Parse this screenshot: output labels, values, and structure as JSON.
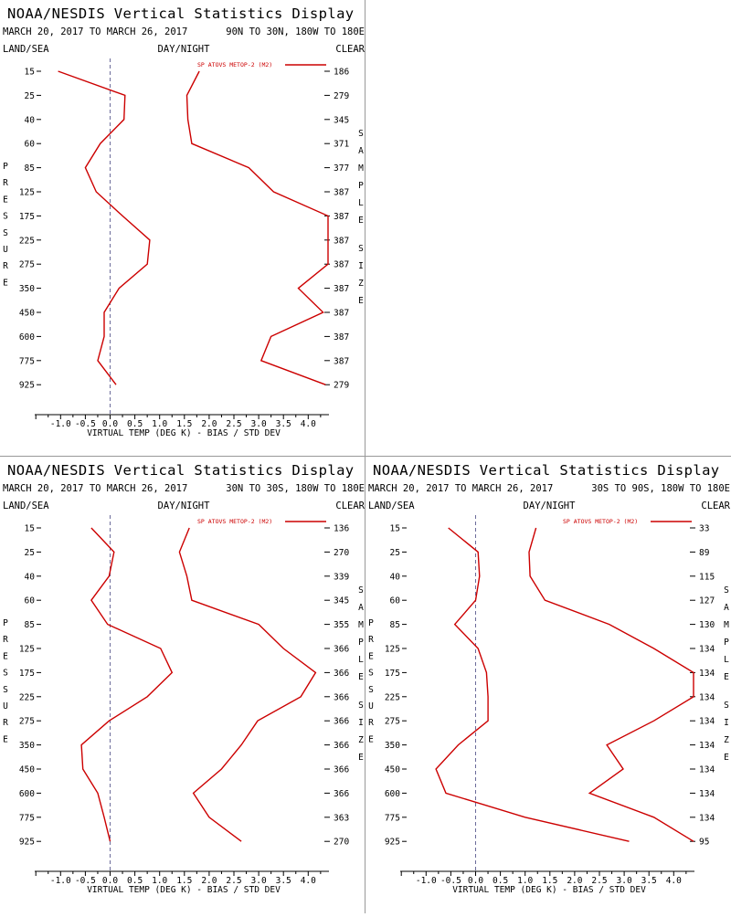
{
  "colors": {
    "series": "#cc0000",
    "zero_line": "#6b6b9a",
    "text": "#000000",
    "divider": "#999999"
  },
  "chart_data": [
    {
      "type": "line",
      "title": "NOAA/NESDIS Vertical Statistics Display",
      "date_range": "MARCH 20, 2017 TO MARCH 26, 2017",
      "region": "90N TO 30N, 180W TO 180E",
      "corner_labels": [
        "LAND/SEA",
        "DAY/NIGHT",
        "CLEAR"
      ],
      "ylabel": "PRESSURE",
      "y2label": "SAMPLE SIZE",
      "xlabel": "VIRTUAL TEMP (DEG K) - BIAS / STD DEV",
      "xlim": [
        -1.5,
        4.4
      ],
      "xticks": [
        "-1.0",
        "-0.5",
        "0.0",
        "0.5",
        "1.0",
        "1.5",
        "2.0",
        "2.5",
        "3.0",
        "3.5",
        "4.0"
      ],
      "pressure_levels": [
        "15",
        "25",
        "40",
        "60",
        "85",
        "125",
        "175",
        "225",
        "275",
        "350",
        "450",
        "600",
        "775",
        "925"
      ],
      "sample_size": [
        "186",
        "279",
        "345",
        "371",
        "377",
        "387",
        "387",
        "387",
        "387",
        "387",
        "387",
        "387",
        "387",
        "279"
      ],
      "legend": "SP ATOVS METOP-2 (M2)",
      "legend_position": "top-right",
      "series": [
        {
          "role": "bias",
          "values": [
            -1.05,
            0.3,
            0.28,
            -0.2,
            -0.5,
            -0.28,
            0.25,
            0.8,
            0.75,
            0.18,
            -0.12,
            -0.12,
            -0.25,
            0.12
          ]
        },
        {
          "role": "std_dev",
          "values": [
            1.8,
            1.55,
            1.57,
            1.65,
            2.8,
            3.3,
            4.4,
            4.4,
            4.4,
            3.8,
            4.3,
            3.25,
            3.05,
            4.35
          ]
        }
      ]
    },
    {
      "type": "line",
      "title": "NOAA/NESDIS Vertical Statistics Display",
      "date_range": "MARCH 20, 2017 TO MARCH 26, 2017",
      "region": "30N TO 30S, 180W TO 180E",
      "corner_labels": [
        "LAND/SEA",
        "DAY/NIGHT",
        "CLEAR"
      ],
      "ylabel": "PRESSURE",
      "y2label": "SAMPLE SIZE",
      "xlabel": "VIRTUAL TEMP (DEG K) - BIAS / STD DEV",
      "xlim": [
        -1.5,
        4.4
      ],
      "xticks": [
        "-1.0",
        "-0.5",
        "0.0",
        "0.5",
        "1.0",
        "1.5",
        "2.0",
        "2.5",
        "3.0",
        "3.5",
        "4.0"
      ],
      "pressure_levels": [
        "15",
        "25",
        "40",
        "60",
        "85",
        "125",
        "175",
        "225",
        "275",
        "350",
        "450",
        "600",
        "775",
        "925"
      ],
      "sample_size": [
        "136",
        "270",
        "339",
        "345",
        "355",
        "366",
        "366",
        "366",
        "366",
        "366",
        "366",
        "366",
        "363",
        "270"
      ],
      "legend": "SP ATOVS METOP-2 (M2)",
      "legend_position": "top-right",
      "series": [
        {
          "role": "bias",
          "values": [
            -0.38,
            0.08,
            -0.02,
            -0.38,
            -0.05,
            1.02,
            1.25,
            0.75,
            -0.02,
            -0.58,
            -0.55,
            -0.25,
            -0.12,
            0.0
          ]
        },
        {
          "role": "std_dev",
          "values": [
            1.6,
            1.4,
            1.55,
            1.65,
            3.0,
            3.5,
            4.15,
            3.85,
            2.98,
            2.65,
            2.25,
            1.68,
            2.0,
            2.65
          ]
        }
      ]
    },
    {
      "type": "line",
      "title": "NOAA/NESDIS Vertical Statistics Display",
      "date_range": "MARCH 20, 2017 TO MARCH 26, 2017",
      "region": "30S TO 90S, 180W TO 180E",
      "corner_labels": [
        "LAND/SEA",
        "DAY/NIGHT",
        "CLEAR"
      ],
      "ylabel": "PRESSURE",
      "y2label": "SAMPLE SIZE",
      "xlabel": "VIRTUAL TEMP (DEG K) - BIAS / STD DEV",
      "xlim": [
        -1.5,
        4.4
      ],
      "xticks": [
        "-1.0",
        "-0.5",
        "0.0",
        "0.5",
        "1.0",
        "1.5",
        "2.0",
        "2.5",
        "3.0",
        "3.5",
        "4.0"
      ],
      "pressure_levels": [
        "15",
        "25",
        "40",
        "60",
        "85",
        "125",
        "175",
        "225",
        "275",
        "350",
        "450",
        "600",
        "775",
        "925"
      ],
      "sample_size": [
        "33",
        "89",
        "115",
        "127",
        "130",
        "134",
        "134",
        "134",
        "134",
        "134",
        "134",
        "134",
        "134",
        "95"
      ],
      "legend": "SP ATOVS METOP-2 (M2)",
      "legend_position": "top-right",
      "series": [
        {
          "role": "bias",
          "values": [
            -0.55,
            0.05,
            0.08,
            0.0,
            -0.42,
            0.05,
            0.22,
            0.25,
            0.25,
            -0.35,
            -0.8,
            -0.6,
            1.0,
            3.1
          ]
        },
        {
          "role": "std_dev",
          "values": [
            1.22,
            1.08,
            1.1,
            1.4,
            2.7,
            3.6,
            4.4,
            4.4,
            3.6,
            2.65,
            2.98,
            2.3,
            3.6,
            4.4
          ]
        }
      ]
    }
  ]
}
